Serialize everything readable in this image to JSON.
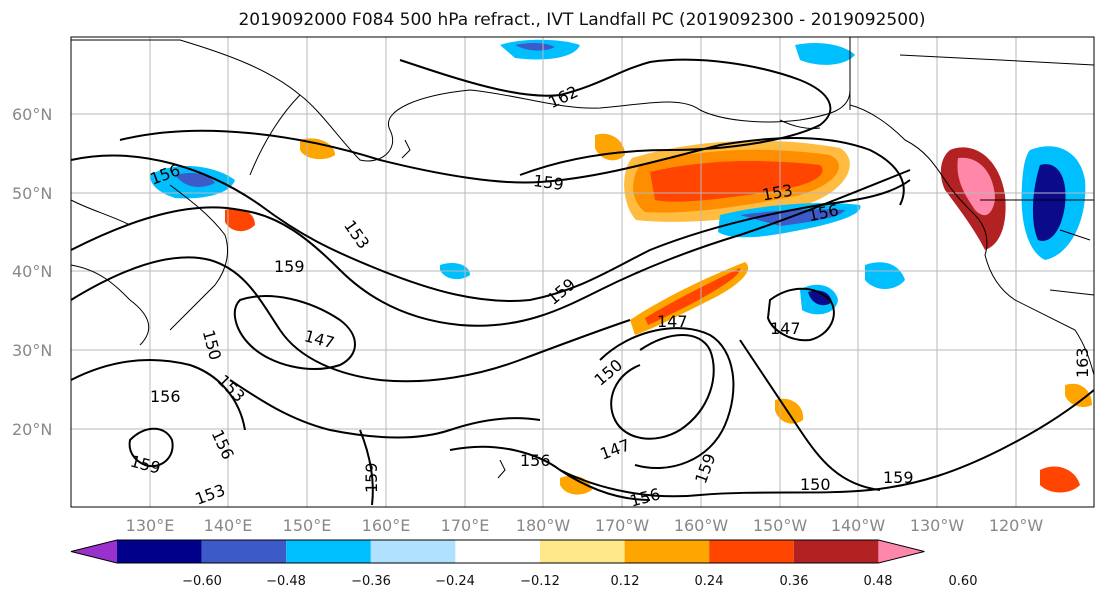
{
  "title": "2019092000 F084 500 hPa refract., IVT Landfall PC (2019092300 - 2019092500)",
  "map": {
    "lon_labels": [
      "130°E",
      "140°E",
      "150°E",
      "160°E",
      "170°E",
      "180°W",
      "170°W",
      "160°W",
      "150°W",
      "140°W",
      "130°W",
      "120°W"
    ],
    "lat_labels": [
      "20°N",
      "30°N",
      "40°N",
      "50°N",
      "60°N"
    ],
    "contour_labels": [
      "162",
      "159",
      "156",
      "153",
      "150",
      "147",
      "159",
      "153",
      "156",
      "159",
      "147",
      "147",
      "150",
      "159",
      "156",
      "153",
      "156",
      "147",
      "156",
      "159",
      "150",
      "159",
      "153",
      "159",
      "156",
      "163"
    ],
    "fill_colors": {
      "deep_negative": "#0a0a8a",
      "negative": "#3c5ac8",
      "mid_negative": "#00bfff",
      "light_negative": "#aee4ff",
      "light_positive": "#ffe88a",
      "positive": "#ffa500",
      "mid_positive": "#ff4500",
      "strong_positive": "#b22222",
      "max_positive": "#ff88aa"
    }
  },
  "colorbar": {
    "ticks": [
      "−0.60",
      "−0.48",
      "−0.36",
      "−0.24",
      "−0.12",
      "0.12",
      "0.24",
      "0.36",
      "0.48",
      "0.60"
    ],
    "colors": [
      "#9932cc",
      "#00008b",
      "#3c5ac8",
      "#00bfff",
      "#b0e2ff",
      "#ffffff",
      "#ffe88a",
      "#ffa500",
      "#ff4500",
      "#b22222",
      "#ff88aa"
    ]
  }
}
